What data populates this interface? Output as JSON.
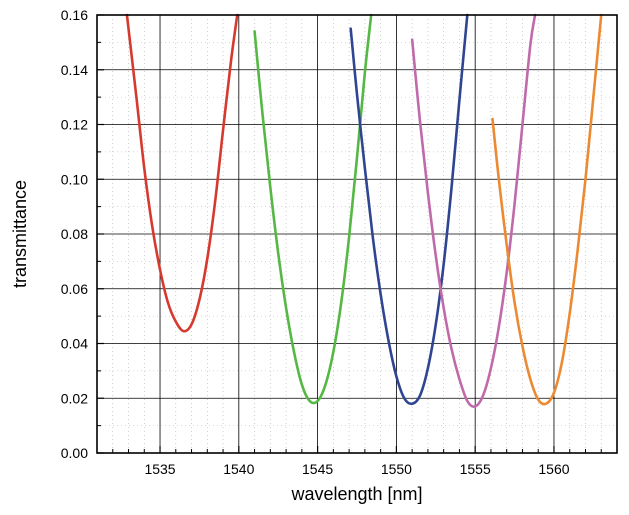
{
  "chart_data": {
    "type": "line",
    "title": "",
    "xlabel": "wavelength [nm]",
    "ylabel": "transmittance",
    "xlim": [
      1531,
      1564
    ],
    "ylim": [
      0,
      0.16
    ],
    "x_major_ticks": [
      1535,
      1540,
      1545,
      1550,
      1555,
      1560
    ],
    "x_tick_labels": [
      "1535",
      "1540",
      "1545",
      "1550",
      "1555",
      "1560"
    ],
    "y_major_ticks": [
      0,
      0.02,
      0.04,
      0.06,
      0.08,
      0.1,
      0.12,
      0.14,
      0.16
    ],
    "y_tick_labels": [
      "0.00",
      "0.02",
      "0.04",
      "0.06",
      "0.08",
      "0.10",
      "0.12",
      "0.14",
      "0.16"
    ],
    "grid": true,
    "legend": "none",
    "series": [
      {
        "color": "#d63a2f",
        "x": [
          1532.9,
          1533.5,
          1534.0,
          1534.5,
          1535.0,
          1535.5,
          1536.0,
          1536.5,
          1537.0,
          1537.5,
          1538.0,
          1538.5,
          1539.0,
          1539.5,
          1539.9
        ],
        "y": [
          0.16,
          0.13,
          0.104,
          0.083,
          0.067,
          0.055,
          0.048,
          0.0445,
          0.047,
          0.056,
          0.071,
          0.092,
          0.118,
          0.143,
          0.16
        ]
      },
      {
        "color": "#55b844",
        "x": [
          1541.0,
          1541.5,
          1542.0,
          1542.5,
          1543.0,
          1543.5,
          1544.0,
          1544.5,
          1545.0,
          1545.5,
          1546.0,
          1546.5,
          1547.0,
          1547.5,
          1548.0,
          1548.4
        ],
        "y": [
          0.154,
          0.124,
          0.097,
          0.073,
          0.053,
          0.037,
          0.025,
          0.019,
          0.019,
          0.025,
          0.037,
          0.055,
          0.079,
          0.108,
          0.139,
          0.16
        ]
      },
      {
        "color": "#2f4592",
        "x": [
          1547.1,
          1547.5,
          1548.0,
          1548.5,
          1549.0,
          1549.5,
          1550.0,
          1550.5,
          1551.0,
          1551.5,
          1552.0,
          1552.5,
          1553.0,
          1553.5,
          1554.0,
          1554.5
        ],
        "y": [
          0.155,
          0.131,
          0.104,
          0.079,
          0.058,
          0.041,
          0.028,
          0.02,
          0.018,
          0.021,
          0.031,
          0.047,
          0.069,
          0.097,
          0.129,
          0.16
        ]
      },
      {
        "color": "#c06aab",
        "x": [
          1551.0,
          1551.5,
          1552.0,
          1552.5,
          1553.0,
          1553.5,
          1554.0,
          1554.5,
          1555.0,
          1555.5,
          1556.0,
          1556.5,
          1557.0,
          1557.5,
          1558.0,
          1558.5,
          1558.8
        ],
        "y": [
          0.151,
          0.121,
          0.095,
          0.072,
          0.053,
          0.038,
          0.027,
          0.019,
          0.017,
          0.021,
          0.031,
          0.046,
          0.066,
          0.091,
          0.12,
          0.149,
          0.16
        ]
      },
      {
        "color": "#ec8a33",
        "x": [
          1556.1,
          1556.5,
          1557.0,
          1557.5,
          1558.0,
          1558.5,
          1559.0,
          1559.5,
          1560.0,
          1560.5,
          1561.0,
          1561.5,
          1562.0,
          1562.5,
          1563.0
        ],
        "y": [
          0.122,
          0.1,
          0.076,
          0.055,
          0.039,
          0.027,
          0.0195,
          0.018,
          0.022,
          0.033,
          0.051,
          0.074,
          0.1,
          0.13,
          0.16
        ]
      }
    ]
  }
}
